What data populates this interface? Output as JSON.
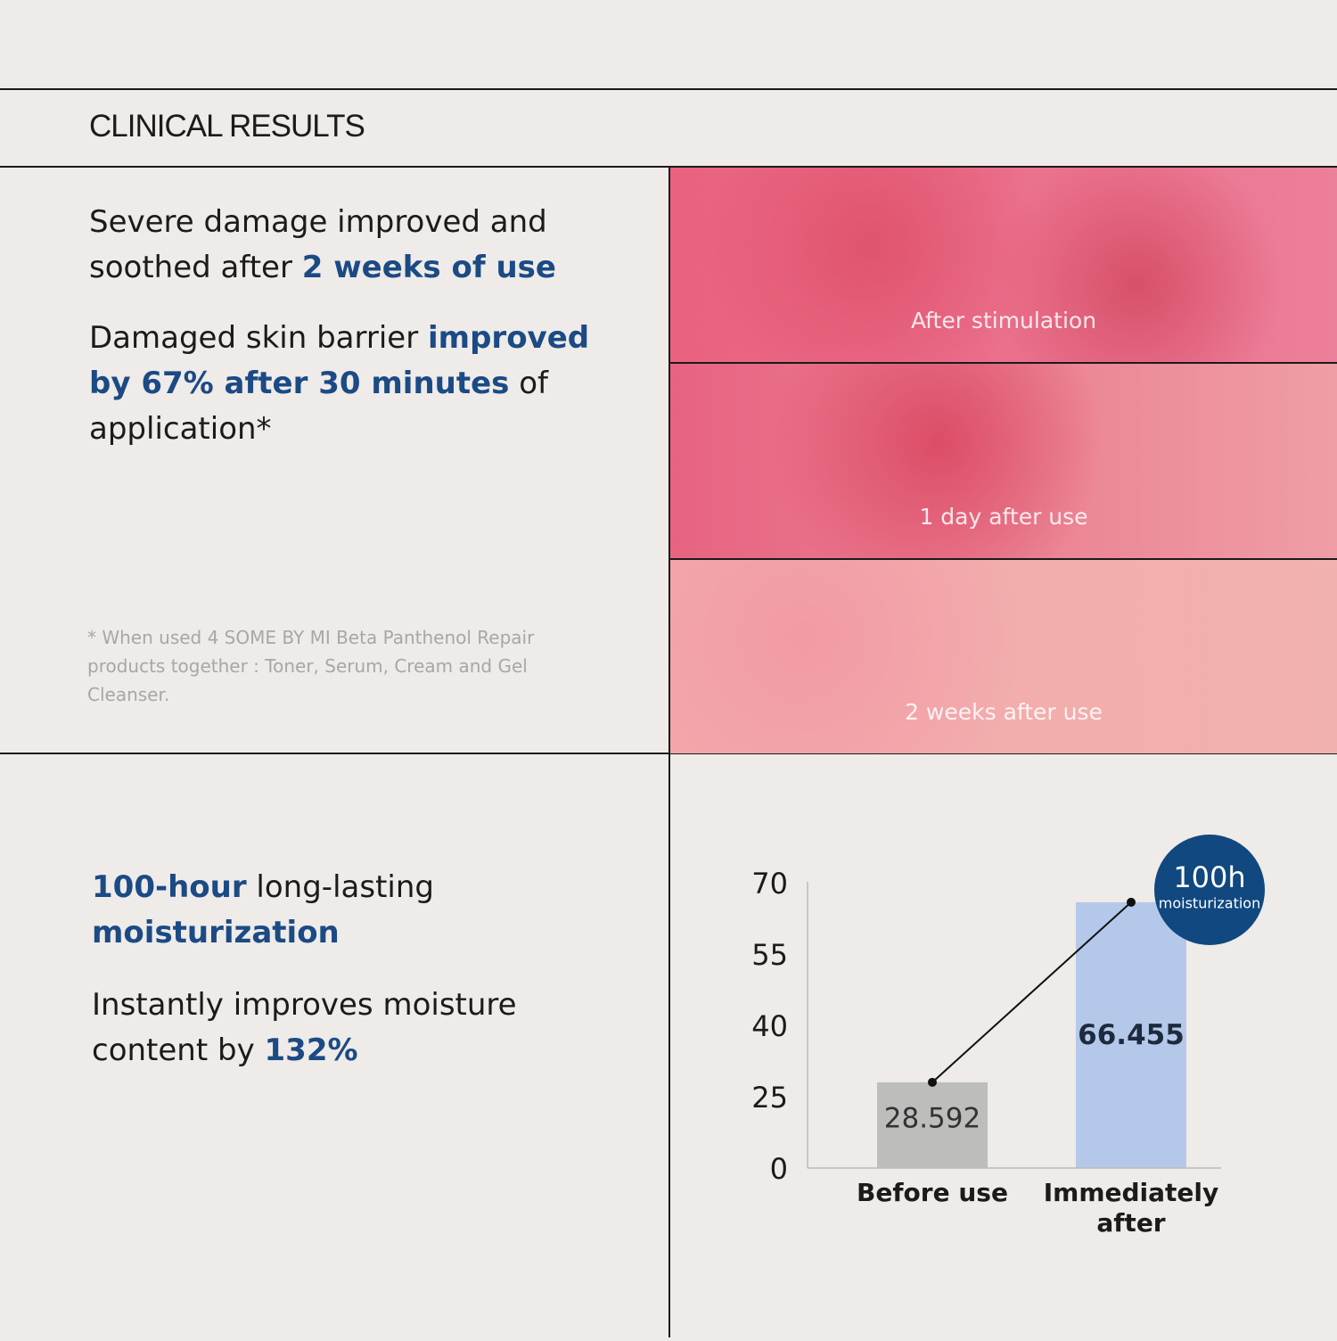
{
  "header": {
    "title": "CLINICAL RESULTS"
  },
  "section_1": {
    "paragraphs": [
      [
        {
          "text": "Severe damage improved and soothed after ",
          "em": false
        },
        {
          "text": "2 weeks of use",
          "em": true
        }
      ],
      [
        {
          "text": "Damaged skin barrier ",
          "em": false
        },
        {
          "text": "improved by 67% after 30 minutes",
          "em": true
        },
        {
          "text": " of application*",
          "em": false
        }
      ]
    ],
    "footnote": "* When used 4 SOME BY MI Beta Panthenol Repair products together : Toner, Serum, Cream and Gel Cleanser.",
    "images": [
      {
        "label": "After stimulation"
      },
      {
        "label": "1 day after use"
      },
      {
        "label": "2 weeks after use"
      }
    ]
  },
  "section_2": {
    "paragraphs": [
      [
        {
          "text": "100-hour",
          "em": true
        },
        {
          "text": " long-lasting ",
          "em": false
        },
        {
          "text": "moisturization",
          "em": true
        }
      ],
      [
        {
          "text": "Instantly improves moisture content by ",
          "em": false
        },
        {
          "text": "132%",
          "em": true
        }
      ]
    ]
  },
  "chart_data": {
    "type": "bar",
    "categories": [
      "Before use",
      "Immediately after"
    ],
    "values": [
      28.592,
      66.455
    ],
    "colors": [
      "#bdbdbc",
      "#b4c9ea"
    ],
    "ylim": [
      0,
      70
    ],
    "yticks": [
      0,
      25,
      40,
      55,
      70
    ],
    "yscale": "even-ticks",
    "connector": true,
    "badge": {
      "title": "100h",
      "subtitle": "moisturization"
    }
  }
}
